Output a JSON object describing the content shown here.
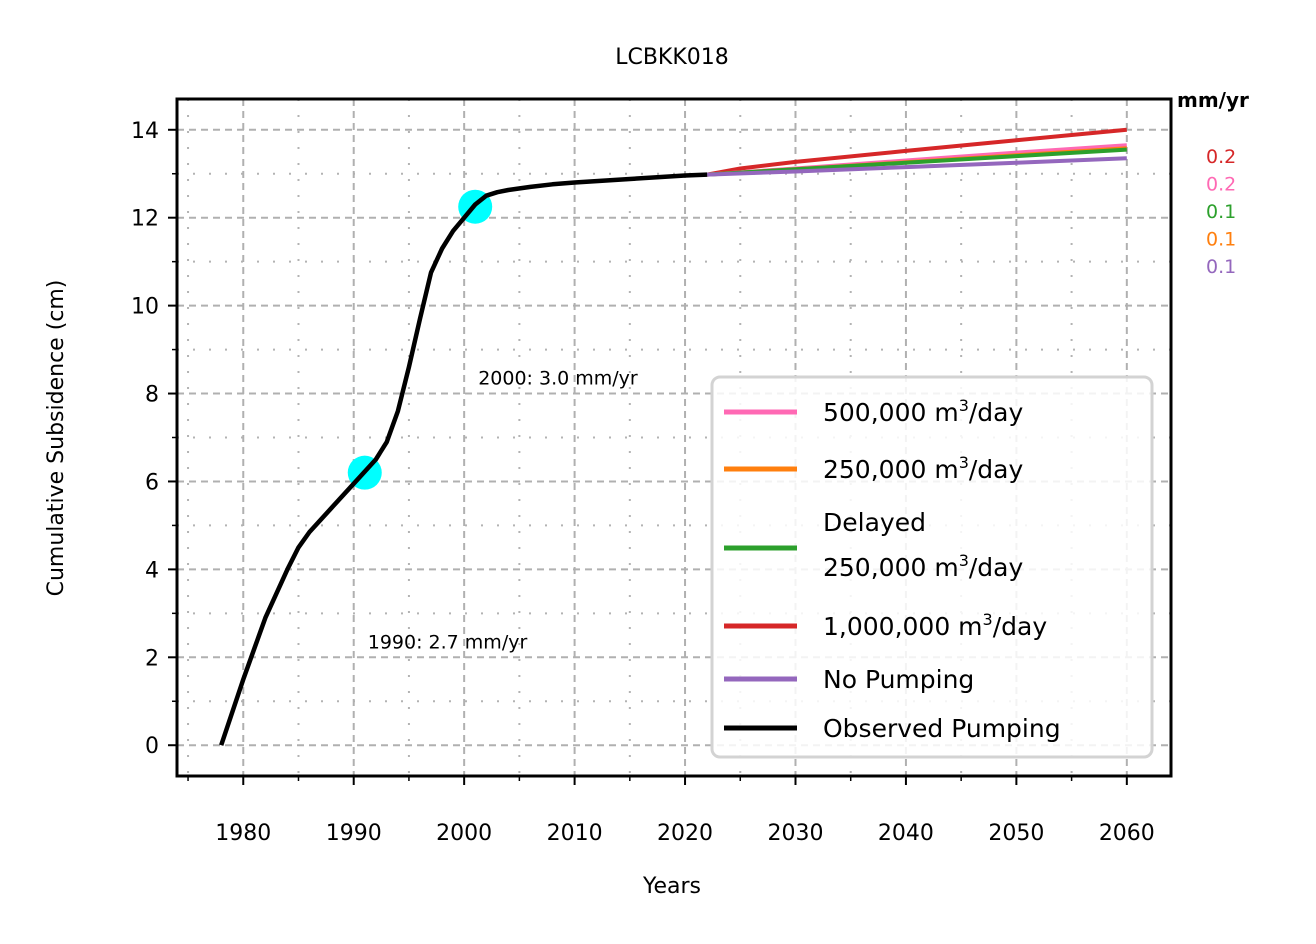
{
  "chart_data": {
    "type": "line",
    "title": "LCBKK018",
    "xlabel": "Years",
    "ylabel": "Cumulative Subsidence (cm)",
    "xlim": [
      1974,
      2064
    ],
    "ylim": [
      -0.7,
      14.7
    ],
    "x_ticks": [
      1980,
      1990,
      2000,
      2010,
      2020,
      2030,
      2040,
      2050,
      2060
    ],
    "y_ticks": [
      0,
      2,
      4,
      6,
      8,
      10,
      12,
      14
    ],
    "grid": true,
    "legend_position": "lower right",
    "series": [
      {
        "name": "500,000 m³/day",
        "color": "#ff69b4",
        "x": [
          2022,
          2030,
          2040,
          2050,
          2060
        ],
        "y": [
          12.98,
          13.12,
          13.3,
          13.48,
          13.65
        ]
      },
      {
        "name": "250,000 m³/day",
        "color": "#ff7f0e",
        "x": [
          2022,
          2030,
          2040,
          2050,
          2060
        ],
        "y": [
          12.98,
          13.1,
          13.26,
          13.42,
          13.58
        ]
      },
      {
        "name": "Delayed 250,000 m³/day",
        "color": "#2ca02c",
        "x": [
          2022,
          2030,
          2040,
          2050,
          2060
        ],
        "y": [
          12.98,
          13.1,
          13.25,
          13.4,
          13.55
        ]
      },
      {
        "name": "1,000,000 m³/day",
        "color": "#d62728",
        "x": [
          2022,
          2025,
          2030,
          2040,
          2050,
          2060
        ],
        "y": [
          12.98,
          13.12,
          13.27,
          13.52,
          13.76,
          14.0
        ]
      },
      {
        "name": "No Pumping",
        "color": "#9467bd",
        "x": [
          2022,
          2030,
          2040,
          2050,
          2060
        ],
        "y": [
          12.98,
          13.05,
          13.15,
          13.25,
          13.35
        ]
      },
      {
        "name": "Observed Pumping",
        "color": "#000000",
        "x": [
          1978,
          1980,
          1982,
          1984,
          1985,
          1986,
          1988,
          1990,
          1992,
          1993,
          1994,
          1995,
          1996,
          1997,
          1998,
          1999,
          2000,
          2001,
          2002,
          2003,
          2004,
          2006,
          2008,
          2010,
          2015,
          2020,
          2022
        ],
        "y": [
          0.0,
          1.5,
          2.9,
          4.0,
          4.5,
          4.85,
          5.4,
          5.95,
          6.5,
          6.9,
          7.6,
          8.6,
          9.7,
          10.75,
          11.3,
          11.7,
          12.0,
          12.3,
          12.5,
          12.58,
          12.63,
          12.7,
          12.76,
          12.8,
          12.88,
          12.96,
          12.98
        ]
      }
    ],
    "markers": [
      {
        "x": 1991,
        "y": 6.2,
        "color": "#00ffff"
      },
      {
        "x": 2001,
        "y": 12.25,
        "color": "#00ffff"
      }
    ],
    "annotations": [
      {
        "text": "2000: 3.0 mm/yr",
        "x": 2001,
        "y": 8.2
      },
      {
        "text": "1990: 2.7 mm/yr",
        "x": 1991,
        "y": 2.2
      }
    ],
    "rates_header": "mm/yr",
    "rates": [
      {
        "value": "0.2",
        "color": "#d62728"
      },
      {
        "value": "0.2",
        "color": "#ff69b4"
      },
      {
        "value": "0.1",
        "color": "#2ca02c"
      },
      {
        "value": "0.1",
        "color": "#ff7f0e"
      },
      {
        "value": "0.1",
        "color": "#9467bd"
      }
    ],
    "legend": [
      {
        "label": "500,000 m",
        "sup": "3",
        "suffix": "/day",
        "color": "#ff69b4"
      },
      {
        "label": "250,000 m",
        "sup": "3",
        "suffix": "/day",
        "color": "#ff7f0e"
      },
      {
        "label": "Delayed",
        "line2": "250,000 m",
        "sup": "3",
        "suffix": "/day",
        "color": "#2ca02c"
      },
      {
        "label": "1,000,000 m",
        "sup": "3",
        "suffix": "/day",
        "color": "#d62728"
      },
      {
        "label": "No Pumping",
        "color": "#9467bd"
      },
      {
        "label": "Observed Pumping",
        "color": "#000000"
      }
    ]
  }
}
